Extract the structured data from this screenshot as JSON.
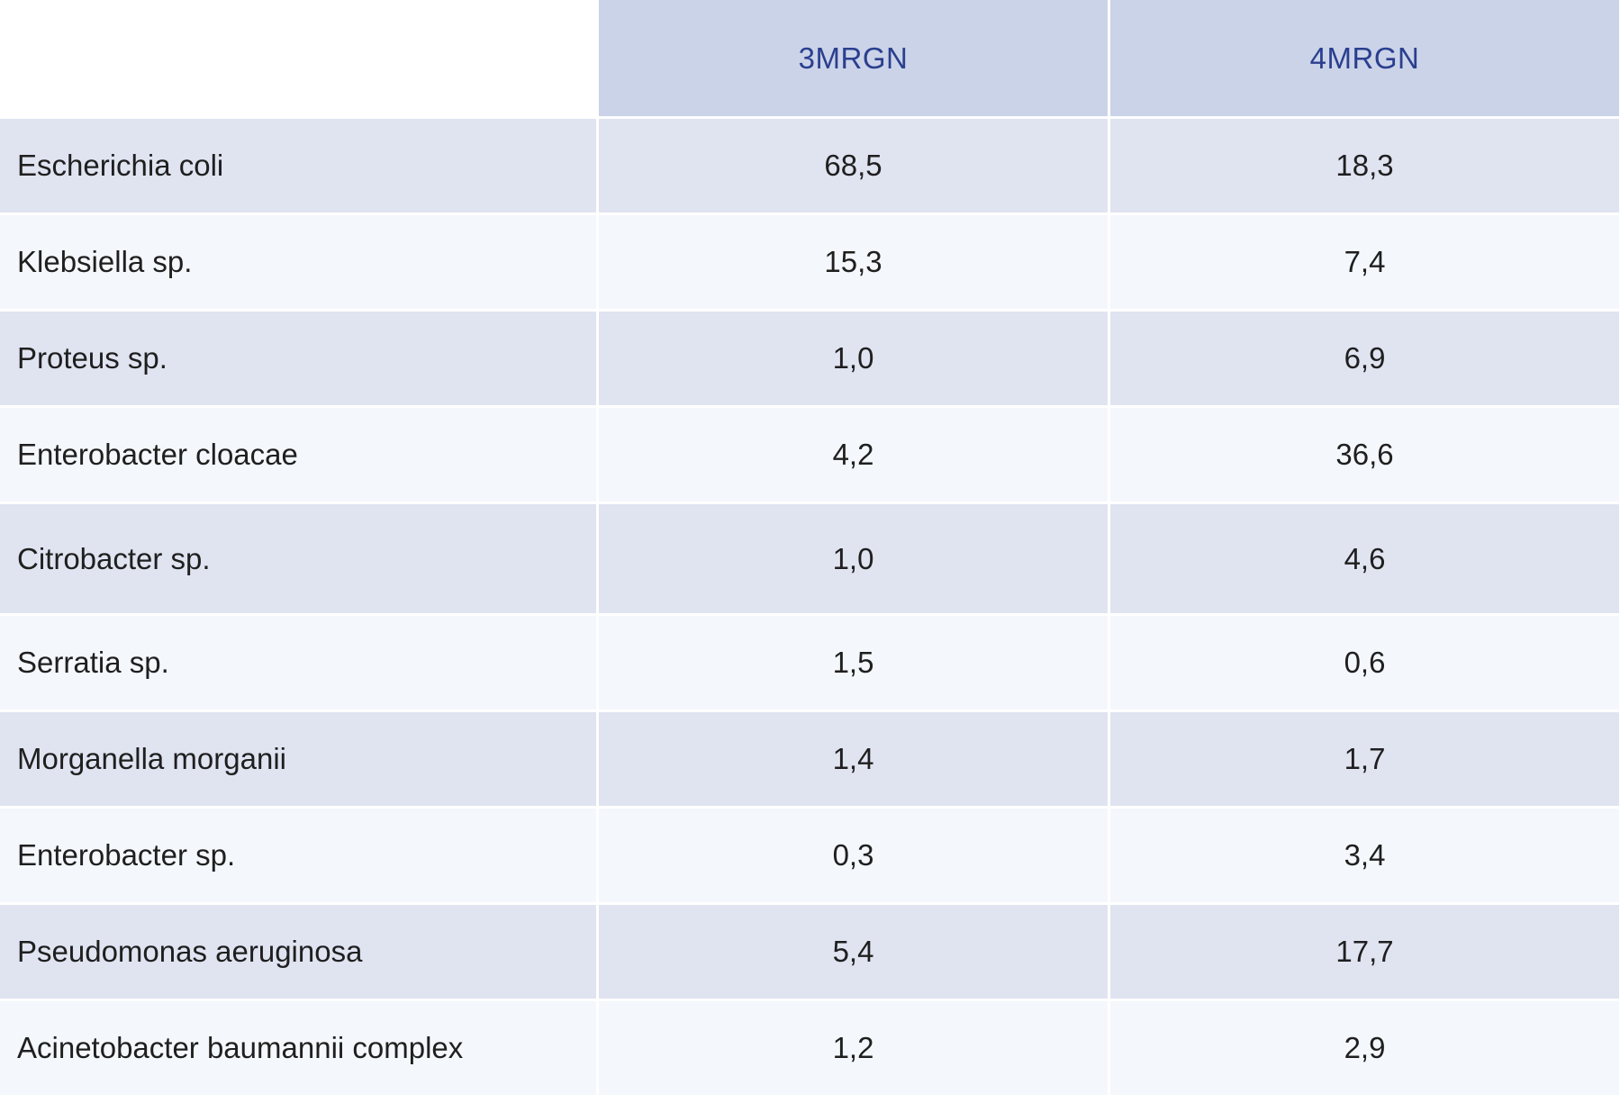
{
  "header": {
    "col1": "3MRGN",
    "col2": "4MRGN"
  },
  "rows": [
    {
      "name": "Escherichia coli",
      "v3": "68,5",
      "v4": "18,3"
    },
    {
      "name": "Klebsiella sp.",
      "v3": "15,3",
      "v4": "7,4"
    },
    {
      "name": "Proteus sp.",
      "v3": "1,0",
      "v4": "6,9"
    },
    {
      "name": "Enterobacter cloacae",
      "v3": "4,2",
      "v4": "36,6"
    },
    {
      "name": "Citrobacter sp.",
      "v3": "1,0",
      "v4": "4,6"
    },
    {
      "name": "Serratia sp.",
      "v3": "1,5",
      "v4": "0,6"
    },
    {
      "name": "Morganella morganii",
      "v3": "1,4",
      "v4": "1,7"
    },
    {
      "name": "Enterobacter sp.",
      "v3": "0,3",
      "v4": "3,4"
    },
    {
      "name": "Pseudomonas aeruginosa",
      "v3": "5,4",
      "v4": "17,7"
    },
    {
      "name": "Acinetobacter baumannii complex",
      "v3": "1,2",
      "v4": "2,9"
    }
  ],
  "colors": {
    "header_bg": "#cbd3e8",
    "header_text": "#2a3f8f",
    "row_odd_bg": "#e0e4f1",
    "row_even_bg": "#f4f7fb"
  }
}
